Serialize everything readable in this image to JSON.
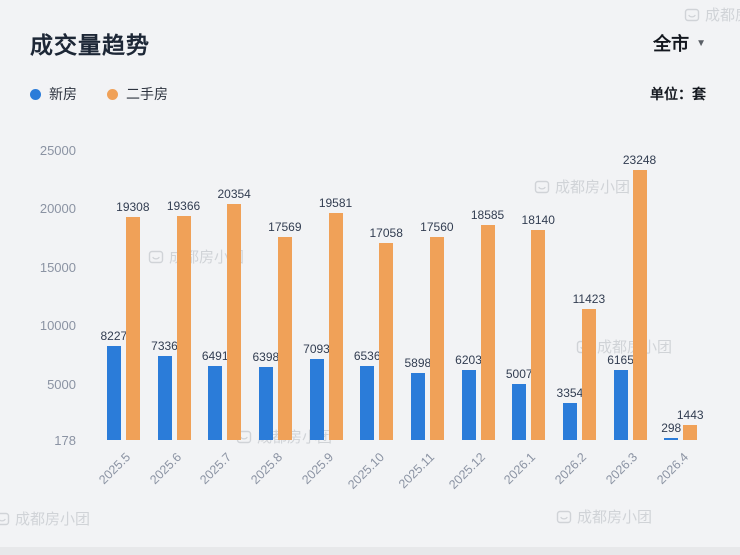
{
  "header": {
    "title": "成交量趋势",
    "city_selector": {
      "label": "全市"
    },
    "unit_label": "单位：套"
  },
  "legend": [
    {
      "label": "新房",
      "color": "#2b7cd9"
    },
    {
      "label": "二手房",
      "color": "#f0a158"
    }
  ],
  "watermark": {
    "text": "成都房小团"
  },
  "chart_data": {
    "type": "bar",
    "title": "成交量趋势",
    "unit": "套",
    "legend_position": "top-left",
    "grid": false,
    "categories": [
      "2025.5",
      "2025.6",
      "2025.7",
      "2025.8",
      "2025.9",
      "2025.10",
      "2025.11",
      "2025.12",
      "2026.1",
      "2026.2",
      "2026.3",
      "2026.4"
    ],
    "series": [
      {
        "name": "新房",
        "color": "#2b7cd9",
        "values": [
          8227,
          7336,
          6491,
          6398,
          7093,
          6536,
          5898,
          6203,
          5007,
          3354,
          6165,
          298
        ]
      },
      {
        "name": "二手房",
        "color": "#f0a158",
        "values": [
          19308,
          19366,
          20354,
          17569,
          19581,
          17058,
          17560,
          18585,
          18140,
          11423,
          23248,
          1443
        ]
      }
    ],
    "y_axis": {
      "min": 178,
      "max": 25000,
      "ticks": [
        178,
        5000,
        10000,
        15000,
        20000,
        25000
      ]
    }
  }
}
